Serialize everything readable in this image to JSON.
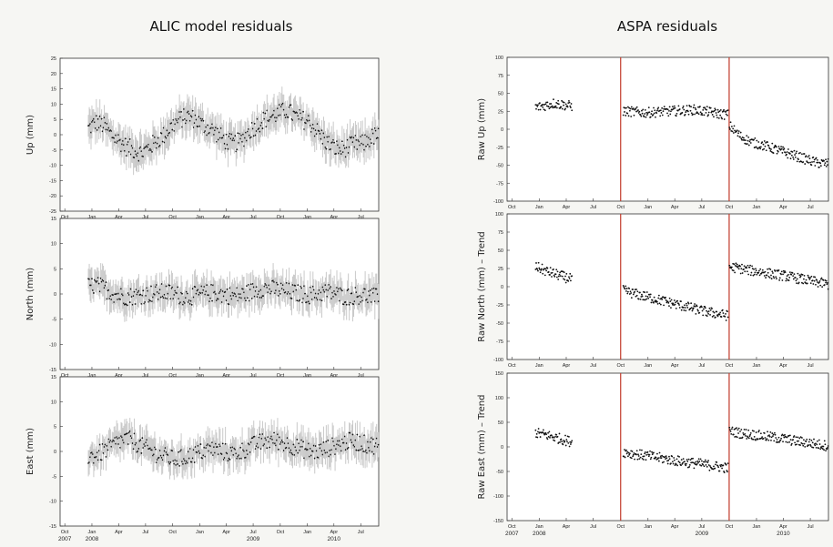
{
  "figure": {
    "left_title": "ALIC model residuals",
    "right_title": "ASPA residuals"
  },
  "chart_data": [
    {
      "type": "scatter",
      "title": "ALIC model residuals",
      "ylabel": "Up (mm)",
      "ylim": [
        -25,
        25
      ],
      "yticks": [
        25,
        20,
        15,
        10,
        5,
        0,
        -5,
        -10,
        -15,
        -20,
        -25
      ],
      "xlim": [
        "2007-09-15",
        "2010-08-31"
      ],
      "xtick_labels": [
        "Oct",
        "Jan",
        "Apr",
        "Jul",
        "Oct",
        "Jan",
        "Apr",
        "Jul",
        "Oct",
        "Jan",
        "Apr",
        "Jul"
      ],
      "error_bars": true,
      "series": [
        {
          "x_start": "2007-12-20",
          "x_end": "2010-08-31",
          "values": [
            2,
            4,
            3,
            0,
            -2,
            -4,
            -5,
            -6,
            -4,
            -2,
            0,
            3,
            5,
            6,
            5,
            3,
            2,
            0,
            -2,
            -3,
            -2,
            1,
            3,
            5,
            6,
            7,
            8,
            6,
            5,
            4,
            1,
            -2,
            -4,
            -5,
            -4,
            -3,
            -3,
            -1,
            0
          ]
        }
      ]
    },
    {
      "type": "scatter",
      "ylabel": "North (mm)",
      "ylim": [
        -15,
        15
      ],
      "yticks": [
        15,
        10,
        5,
        0,
        -5,
        -10,
        -15
      ],
      "xlim": [
        "2007-09-15",
        "2010-08-31"
      ],
      "xtick_labels": [
        "Oct",
        "Jan",
        "Apr",
        "Jul",
        "Oct",
        "Jan",
        "Apr",
        "Jul",
        "Oct",
        "Jan",
        "Apr",
        "Jul"
      ],
      "error_bars": true,
      "series": [
        {
          "x_start": "2007-12-20",
          "x_end": "2010-08-31",
          "values": [
            1.5,
            1.8,
            1.2,
            0.3,
            -0.3,
            -0.5,
            -0.4,
            -0.2,
            0,
            0.2,
            0.3,
            0.1,
            -0.3,
            -0.5,
            -0.3,
            0,
            0.2,
            0.1,
            -0.2,
            -0.4,
            -0.2,
            0.3,
            0.8,
            1.2,
            1.0,
            0.8,
            0.5,
            0.2,
            0,
            -0.2,
            0,
            0.4,
            0.2,
            -0.3,
            -0.5,
            -0.3,
            -0.2,
            -0.5,
            -0.8
          ]
        }
      ]
    },
    {
      "type": "scatter",
      "ylabel": "East (mm)",
      "ylim": [
        -15,
        15
      ],
      "yticks": [
        15,
        10,
        5,
        0,
        -5,
        -10,
        -15
      ],
      "xlim": [
        "2007-09-15",
        "2010-08-31"
      ],
      "xtick_labels": [
        "Oct",
        "Jan",
        "Apr",
        "Jul",
        "Oct",
        "Jan",
        "Apr",
        "Jul",
        "Oct",
        "Jan",
        "Apr",
        "Jul"
      ],
      "year_labels": [
        "2007",
        "2008",
        "2009",
        "2010"
      ],
      "error_bars": true,
      "series": [
        {
          "x_start": "2007-12-20",
          "x_end": "2010-08-31",
          "values": [
            -1,
            -0.8,
            0,
            1,
            2,
            2.5,
            2,
            1,
            0.3,
            -0.5,
            -1,
            -1.5,
            -1.5,
            -1,
            -0.5,
            0,
            0.5,
            0.3,
            -0.2,
            -0.5,
            0,
            0.8,
            1.5,
            2,
            2.2,
            2,
            1.5,
            1,
            0.5,
            0,
            0,
            0.5,
            1,
            1.5,
            2,
            2,
            1.5,
            1.3,
            1.2
          ]
        }
      ]
    },
    {
      "type": "scatter",
      "title": "ASPA residuals",
      "ylabel": "Raw Up (mm)",
      "ylim": [
        -100,
        100
      ],
      "yticks": [
        100,
        75,
        50,
        25,
        0,
        -25,
        -50,
        -75,
        -100
      ],
      "xlim": [
        "2007-09-15",
        "2010-08-31"
      ],
      "xtick_labels": [
        "Oct",
        "Jan",
        "Apr",
        "Jul",
        "Oct",
        "Jan",
        "Apr",
        "Jul",
        "Oct",
        "Jan",
        "Apr",
        "Jul"
      ],
      "vertical_lines": [
        "2008-10-01",
        "2009-10-01"
      ],
      "vertical_line_color": "#c23a2a",
      "series": [
        {
          "x_start": "2007-12-20",
          "x_end": "2008-04-20",
          "values": [
            30,
            33,
            36,
            34,
            32
          ]
        },
        {
          "x_start": "2008-10-10",
          "x_end": "2009-09-28",
          "values": [
            25,
            24,
            23,
            24,
            25,
            26,
            27,
            25,
            22,
            20
          ]
        },
        {
          "x_start": "2009-10-02",
          "x_end": "2010-08-31",
          "values": [
            5,
            -10,
            -18,
            -22,
            -27,
            -32,
            -37,
            -42,
            -47,
            -48
          ]
        }
      ]
    },
    {
      "type": "scatter",
      "ylabel": "Raw North (mm) – Trend",
      "ylim": [
        -100,
        100
      ],
      "yticks": [
        100,
        75,
        50,
        25,
        0,
        -25,
        -50,
        -75,
        -100
      ],
      "xlim": [
        "2007-09-15",
        "2010-08-31"
      ],
      "xtick_labels": [
        "Oct",
        "Jan",
        "Apr",
        "Jul",
        "Oct",
        "Jan",
        "Apr",
        "Jul",
        "Oct",
        "Jan",
        "Apr",
        "Jul"
      ],
      "vertical_lines": [
        "2008-10-01",
        "2009-10-01"
      ],
      "vertical_line_color": "#c23a2a",
      "series": [
        {
          "x_start": "2007-12-20",
          "x_end": "2008-04-20",
          "values": [
            28,
            22,
            18,
            14,
            10
          ]
        },
        {
          "x_start": "2008-10-10",
          "x_end": "2009-09-28",
          "values": [
            -5,
            -10,
            -14,
            -18,
            -22,
            -26,
            -30,
            -34,
            -37,
            -40
          ]
        },
        {
          "x_start": "2009-10-02",
          "x_end": "2010-08-31",
          "values": [
            27,
            25,
            22,
            20,
            17,
            15,
            12,
            9,
            6,
            3
          ]
        }
      ]
    },
    {
      "type": "scatter",
      "ylabel": "Raw East (mm) – Trend",
      "ylim": [
        -150,
        150
      ],
      "yticks": [
        150,
        100,
        50,
        0,
        -50,
        -100,
        -150
      ],
      "xlim": [
        "2007-09-15",
        "2010-08-31"
      ],
      "xtick_labels": [
        "Oct",
        "Jan",
        "Apr",
        "Jul",
        "Oct",
        "Jan",
        "Apr",
        "Jul",
        "Oct",
        "Jan",
        "Apr",
        "Jul"
      ],
      "year_labels": [
        "2007",
        "2008",
        "2009",
        "2010"
      ],
      "vertical_lines": [
        "2008-10-01",
        "2009-10-01"
      ],
      "vertical_line_color": "#c23a2a",
      "series": [
        {
          "x_start": "2007-12-20",
          "x_end": "2008-04-20",
          "values": [
            28,
            25,
            20,
            15,
            10
          ]
        },
        {
          "x_start": "2008-10-10",
          "x_end": "2009-09-28",
          "values": [
            -10,
            -15,
            -18,
            -22,
            -26,
            -30,
            -33,
            -36,
            -40,
            -43
          ]
        },
        {
          "x_start": "2009-10-02",
          "x_end": "2010-08-31",
          "values": [
            32,
            28,
            25,
            22,
            19,
            16,
            12,
            9,
            5,
            2
          ]
        }
      ]
    }
  ]
}
